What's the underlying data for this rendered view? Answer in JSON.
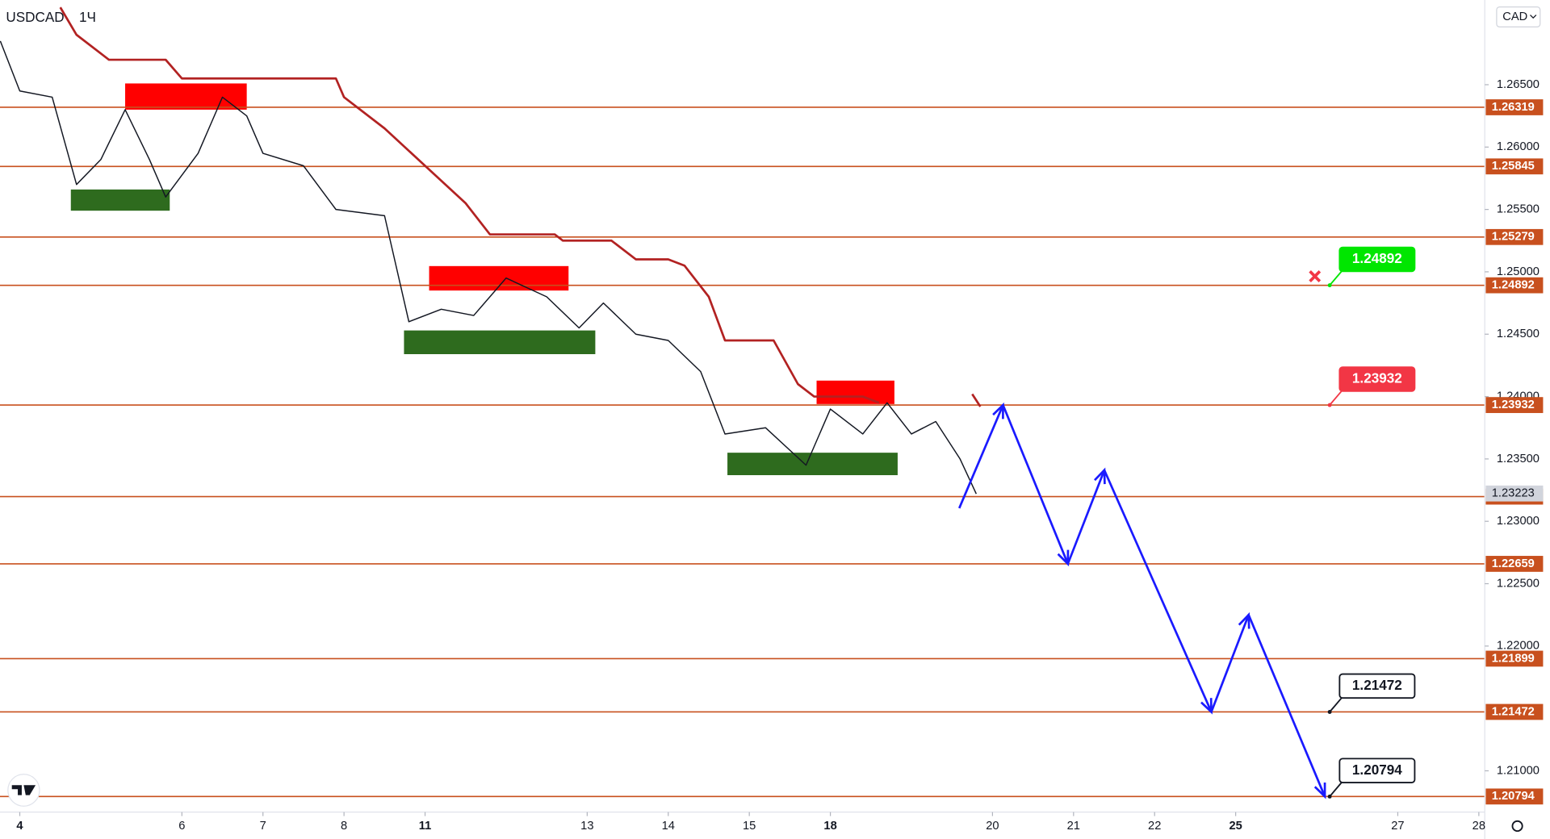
{
  "chart_data": {
    "type": "line",
    "symbol": "USDCAD",
    "timeframe": "1Ч",
    "currency": "CAD",
    "xlim": [
      -0.244,
      18.073
    ],
    "ylim": [
      1.20669,
      1.27179
    ],
    "xticks": [
      {
        "value": 0,
        "label": "4"
      },
      {
        "value": 2,
        "label": "6"
      },
      {
        "value": 3,
        "label": "7"
      },
      {
        "value": 4,
        "label": "8"
      },
      {
        "value": 5,
        "label": "11"
      },
      {
        "value": 7,
        "label": "13"
      },
      {
        "value": 8,
        "label": "14"
      },
      {
        "value": 9,
        "label": "15"
      },
      {
        "value": 10,
        "label": "18"
      },
      {
        "value": 12,
        "label": "20"
      },
      {
        "value": 13,
        "label": "21"
      },
      {
        "value": 14,
        "label": "22"
      },
      {
        "value": 15,
        "label": "25"
      },
      {
        "value": 17,
        "label": "27"
      },
      {
        "value": 18,
        "label": "28"
      }
    ],
    "yticks": [
      {
        "value": 1.265,
        "label": "1.26500"
      },
      {
        "value": 1.26,
        "label": "1.26000"
      },
      {
        "value": 1.255,
        "label": "1.25500"
      },
      {
        "value": 1.25,
        "label": "1.25000"
      },
      {
        "value": 1.245,
        "label": "1.24500"
      },
      {
        "value": 1.24,
        "label": "1.24000"
      },
      {
        "value": 1.235,
        "label": "1.23500"
      },
      {
        "value": 1.23,
        "label": "1.23000"
      },
      {
        "value": 1.225,
        "label": "1.22500"
      },
      {
        "value": 1.22,
        "label": "1.22000"
      },
      {
        "value": 1.21,
        "label": "1.21000"
      }
    ],
    "last_price": {
      "value": 1.23223,
      "color": "#d1d4dc"
    },
    "levels": {
      "color": "#c8501e",
      "values": [
        1.26319,
        1.25845,
        1.25279,
        1.24892,
        1.23932,
        1.23198,
        1.22659,
        1.21899,
        1.21472,
        1.20794
      ]
    },
    "zones": [
      {
        "color": "#ff0000",
        "x": [
          1.3,
          2.8
        ],
        "y": [
          1.263,
          1.2651
        ]
      },
      {
        "color": "#ff0000",
        "x": [
          5.05,
          6.77
        ],
        "y": [
          1.2485,
          1.25046
        ]
      },
      {
        "color": "#ff0000",
        "x": [
          9.83,
          10.79
        ],
        "y": [
          1.2394,
          1.24128
        ]
      },
      {
        "color": "#2e6b1e",
        "x": [
          0.63,
          1.85
        ],
        "y": [
          1.2549,
          1.2566
        ]
      },
      {
        "color": "#2e6b1e",
        "x": [
          4.74,
          7.1
        ],
        "y": [
          1.2434,
          1.2453
        ]
      },
      {
        "color": "#2e6b1e",
        "x": [
          8.73,
          10.83
        ],
        "y": [
          1.2337,
          1.2355
        ]
      }
    ],
    "series": [
      {
        "color": "#131722",
        "x": [
          -0.24,
          0,
          0.4,
          0.7,
          1,
          1.3,
          1.6,
          1.8,
          2.2,
          2.5,
          2.8,
          3,
          3.5,
          3.9,
          4.5,
          4.8,
          5.2,
          5.6,
          6,
          6.5,
          6.9,
          7.2,
          7.6,
          8,
          8.4,
          8.7,
          9.2,
          9.7,
          10,
          10.4,
          10.7,
          11,
          11.3,
          11.6,
          11.8
        ],
        "values": [
          1.2685,
          1.2645,
          1.264,
          1.257,
          1.259,
          1.263,
          1.259,
          1.256,
          1.2595,
          1.264,
          1.2625,
          1.2595,
          1.2585,
          1.255,
          1.2545,
          1.246,
          1.247,
          1.2465,
          1.2495,
          1.248,
          1.2455,
          1.2475,
          1.245,
          1.2445,
          1.242,
          1.237,
          1.2375,
          1.2345,
          1.239,
          1.237,
          1.2395,
          1.237,
          1.238,
          1.235,
          1.2322
        ]
      },
      {
        "color": "#b22222",
        "x": [
          0.5,
          0.7,
          1.1,
          1.8,
          2,
          3.9,
          4,
          4.5,
          5,
          5.5,
          5.8,
          6.6,
          6.7,
          7.3,
          7.6,
          8,
          8.2,
          8.5,
          8.7,
          9.3,
          9.6,
          9.8,
          10.4,
          10.6,
          11.7,
          11.75,
          11.85
        ],
        "values": [
          1.2712,
          1.269,
          1.267,
          1.267,
          1.2655,
          1.2655,
          1.264,
          1.2615,
          1.2585,
          1.2555,
          1.253,
          1.253,
          1.2525,
          1.2525,
          1.251,
          1.251,
          1.2505,
          1.248,
          1.2445,
          1.2445,
          1.241,
          1.24,
          1.24,
          1.2395,
          null,
          1.2402,
          1.2392
        ]
      },
      {
        "color": "#1a1aff",
        "x": [
          11.59,
          12.13,
          12.93,
          13.38,
          14.7,
          15.16,
          16.1
        ],
        "values": [
          1.23105,
          1.23932,
          1.22659,
          1.2341,
          1.21472,
          1.2225,
          1.20794
        ]
      }
    ],
    "callouts": [
      {
        "value": 1.24892,
        "x": 16.16,
        "color": "#00e600",
        "fill": "#00e600",
        "text_color": "#ffffff"
      },
      {
        "value": 1.23932,
        "x": 16.16,
        "color": "#f23645",
        "fill": "#f23645",
        "text_color": "#ffffff"
      },
      {
        "value": 1.21472,
        "x": 16.16,
        "color": "#131722",
        "fill": "#ffffff",
        "text_color": "#131722"
      },
      {
        "value": 1.20794,
        "x": 16.16,
        "color": "#131722",
        "fill": "#ffffff",
        "text_color": "#131722"
      }
    ]
  }
}
